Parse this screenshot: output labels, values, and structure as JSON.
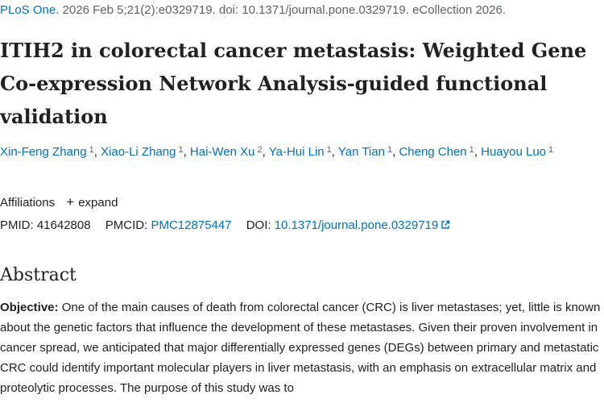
{
  "citation": {
    "journal": "PLoS One",
    "details": ". 2026 Feb 5;21(2):e0329719. doi: 10.1371/journal.pone.0329719. eCollection 2026."
  },
  "article": {
    "title": "ITIH2 in colorectal cancer metastasis: Weighted Gene Co-expression Network Analysis-guided functional validation"
  },
  "authors": [
    {
      "name": "Xin-Feng Zhang",
      "affiliation": "1"
    },
    {
      "name": "Xiao-Li Zhang",
      "affiliation": "1"
    },
    {
      "name": "Hai-Wen Xu",
      "affiliation": "2"
    },
    {
      "name": "Ya-Hui Lin",
      "affiliation": "1"
    },
    {
      "name": "Yan Tian",
      "affiliation": "1"
    },
    {
      "name": "Cheng Chen",
      "affiliation": "1"
    },
    {
      "name": "Huayou Luo",
      "affiliation": "1"
    }
  ],
  "affiliations": {
    "label": "Affiliations",
    "expand_label": "expand"
  },
  "identifiers": {
    "pmid_label": "PMID:",
    "pmid": "41642808",
    "pmcid_label": "PMCID:",
    "pmcid": "PMC12875447",
    "doi_label": "DOI:",
    "doi": "10.1371/journal.pone.0329719"
  },
  "abstract": {
    "heading": "Abstract",
    "objective_label": "Objective:",
    "objective_text": " One of the main causes of death from colorectal cancer (CRC) is liver metastases; yet, little is known about the genetic factors that influence the development of these metastases. Given their proven involvement in cancer spread, we anticipated that major differentially expressed genes (DEGs) between primary and metastatic CRC could identify important molecular players in liver metastasis, with an emphasis on extracellular matrix and proteolytic processes. The purpose of this study was to"
  },
  "colors": {
    "link": "#0071bc",
    "text": "#212121",
    "muted": "#5b616b"
  },
  "icons": {
    "expand": "plus-icon",
    "doi_link": "external-link-icon"
  }
}
